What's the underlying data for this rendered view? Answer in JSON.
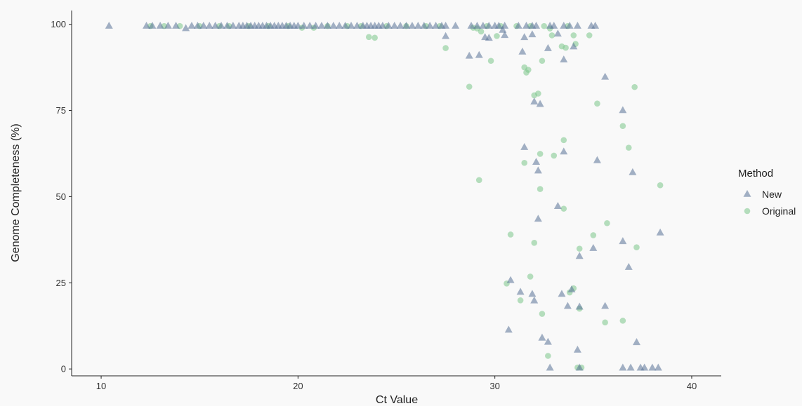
{
  "chart_data": {
    "type": "scatter",
    "xlabel": "Ct Value",
    "ylabel": "Genome Completeness (%)",
    "xlim": [
      8.5,
      41.5
    ],
    "ylim": [
      -2,
      104
    ],
    "xticks": [
      10,
      20,
      30,
      40
    ],
    "yticks": [
      0,
      25,
      50,
      75,
      100
    ],
    "grid": false,
    "legend": {
      "title": "Method",
      "placement": "right",
      "entries": [
        {
          "label": "New",
          "marker": "triangle",
          "color": "#5a7398"
        },
        {
          "label": "Original",
          "marker": "circle",
          "color": "#7cc68a"
        }
      ]
    },
    "series": [
      {
        "name": "New",
        "marker": "triangle",
        "color": "#5a7398",
        "opacity": 0.55,
        "points": [
          [
            10.4,
            99.5
          ],
          [
            12.3,
            99.5
          ],
          [
            12.6,
            99.5
          ],
          [
            13.0,
            99.5
          ],
          [
            13.4,
            99.5
          ],
          [
            13.8,
            99.5
          ],
          [
            14.3,
            98.8
          ],
          [
            14.6,
            99.5
          ],
          [
            14.9,
            99.5
          ],
          [
            15.2,
            99.5
          ],
          [
            15.5,
            99.5
          ],
          [
            15.8,
            99.5
          ],
          [
            16.1,
            99.5
          ],
          [
            16.4,
            99.5
          ],
          [
            16.7,
            99.5
          ],
          [
            17.0,
            99.5
          ],
          [
            17.2,
            99.5
          ],
          [
            17.4,
            99.5
          ],
          [
            17.6,
            99.5
          ],
          [
            17.8,
            99.5
          ],
          [
            18.0,
            99.5
          ],
          [
            18.2,
            99.5
          ],
          [
            18.4,
            99.5
          ],
          [
            18.6,
            99.5
          ],
          [
            18.8,
            99.5
          ],
          [
            19.0,
            99.5
          ],
          [
            19.2,
            99.5
          ],
          [
            19.4,
            99.5
          ],
          [
            19.6,
            99.5
          ],
          [
            19.8,
            99.5
          ],
          [
            20.0,
            99.5
          ],
          [
            20.3,
            99.5
          ],
          [
            20.6,
            99.5
          ],
          [
            20.9,
            99.5
          ],
          [
            21.2,
            99.5
          ],
          [
            21.5,
            99.5
          ],
          [
            21.8,
            99.5
          ],
          [
            22.1,
            99.5
          ],
          [
            22.4,
            99.5
          ],
          [
            22.7,
            99.5
          ],
          [
            23.0,
            99.5
          ],
          [
            23.3,
            99.5
          ],
          [
            23.5,
            99.5
          ],
          [
            23.7,
            99.5
          ],
          [
            23.9,
            99.5
          ],
          [
            24.1,
            99.5
          ],
          [
            24.3,
            99.5
          ],
          [
            24.6,
            99.5
          ],
          [
            24.9,
            99.5
          ],
          [
            25.2,
            99.5
          ],
          [
            25.5,
            99.5
          ],
          [
            25.8,
            99.5
          ],
          [
            26.1,
            99.5
          ],
          [
            26.4,
            99.5
          ],
          [
            26.7,
            99.5
          ],
          [
            27.0,
            99.5
          ],
          [
            27.3,
            99.5
          ],
          [
            27.5,
            99.5
          ],
          [
            28.0,
            99.5
          ],
          [
            28.8,
            99.5
          ],
          [
            29.1,
            99.5
          ],
          [
            29.4,
            99.5
          ],
          [
            29.7,
            99.5
          ],
          [
            30.0,
            99.5
          ],
          [
            30.2,
            99.5
          ],
          [
            30.5,
            99.5
          ],
          [
            31.2,
            99.5
          ],
          [
            31.6,
            99.5
          ],
          [
            31.9,
            99.5
          ],
          [
            32.1,
            99.5
          ],
          [
            32.8,
            99.5
          ],
          [
            33.0,
            99.5
          ],
          [
            33.5,
            99.5
          ],
          [
            33.8,
            99.5
          ],
          [
            34.2,
            99.5
          ],
          [
            34.9,
            99.5
          ],
          [
            35.1,
            99.5
          ],
          [
            27.5,
            96.5
          ],
          [
            29.5,
            96.2
          ],
          [
            29.7,
            96.0
          ],
          [
            30.4,
            98.3
          ],
          [
            30.5,
            96.8
          ],
          [
            31.5,
            96.2
          ],
          [
            31.9,
            97.0
          ],
          [
            33.2,
            97.2
          ],
          [
            34.0,
            93.5
          ],
          [
            28.7,
            90.8
          ],
          [
            29.2,
            91.0
          ],
          [
            31.4,
            92.0
          ],
          [
            32.7,
            93.0
          ],
          [
            33.5,
            89.7
          ],
          [
            35.6,
            84.7
          ],
          [
            32.0,
            77.5
          ],
          [
            32.3,
            76.8
          ],
          [
            36.5,
            75.0
          ],
          [
            31.5,
            64.3
          ],
          [
            33.5,
            63.0
          ],
          [
            32.1,
            60.0
          ],
          [
            35.2,
            60.5
          ],
          [
            32.2,
            57.5
          ],
          [
            37.0,
            57.0
          ],
          [
            33.2,
            47.2
          ],
          [
            32.2,
            43.5
          ],
          [
            38.4,
            39.5
          ],
          [
            36.5,
            37.0
          ],
          [
            35.0,
            35.0
          ],
          [
            34.3,
            32.7
          ],
          [
            36.8,
            29.5
          ],
          [
            30.8,
            25.7
          ],
          [
            33.9,
            23.0
          ],
          [
            31.3,
            22.3
          ],
          [
            31.9,
            21.7
          ],
          [
            33.4,
            21.7
          ],
          [
            32.0,
            19.8
          ],
          [
            33.7,
            18.2
          ],
          [
            34.3,
            18.0
          ],
          [
            35.6,
            18.2
          ],
          [
            30.7,
            11.3
          ],
          [
            32.4,
            9.0
          ],
          [
            32.7,
            7.8
          ],
          [
            37.2,
            7.7
          ],
          [
            34.2,
            5.5
          ],
          [
            32.8,
            0.3
          ],
          [
            34.3,
            0.3
          ],
          [
            36.5,
            0.3
          ],
          [
            36.9,
            0.3
          ],
          [
            37.4,
            0.3
          ],
          [
            37.6,
            0.3
          ],
          [
            38.0,
            0.3
          ],
          [
            38.3,
            0.3
          ]
        ]
      },
      {
        "name": "Original",
        "marker": "circle",
        "color": "#7cc68a",
        "opacity": 0.55,
        "points": [
          [
            12.5,
            99.5
          ],
          [
            13.2,
            99.5
          ],
          [
            14.0,
            99.5
          ],
          [
            15.0,
            99.5
          ],
          [
            16.0,
            99.5
          ],
          [
            16.5,
            99.5
          ],
          [
            17.5,
            99.5
          ],
          [
            18.5,
            99.5
          ],
          [
            19.5,
            99.5
          ],
          [
            20.2,
            99.0
          ],
          [
            20.8,
            99.0
          ],
          [
            21.5,
            99.5
          ],
          [
            22.5,
            99.5
          ],
          [
            23.2,
            99.5
          ],
          [
            24.5,
            99.5
          ],
          [
            25.5,
            99.5
          ],
          [
            26.5,
            99.5
          ],
          [
            27.2,
            99.5
          ],
          [
            28.9,
            99.0
          ],
          [
            29.1,
            98.8
          ],
          [
            29.6,
            99.5
          ],
          [
            30.3,
            99.5
          ],
          [
            31.1,
            99.5
          ],
          [
            31.8,
            99.5
          ],
          [
            32.5,
            99.5
          ],
          [
            32.8,
            98.8
          ],
          [
            33.7,
            99.5
          ],
          [
            23.6,
            96.3
          ],
          [
            23.9,
            96.1
          ],
          [
            29.3,
            97.9
          ],
          [
            30.1,
            96.6
          ],
          [
            32.9,
            96.8
          ],
          [
            34.0,
            96.8
          ],
          [
            34.8,
            96.8
          ],
          [
            27.5,
            93.1
          ],
          [
            33.4,
            93.6
          ],
          [
            33.6,
            93.2
          ],
          [
            34.1,
            94.3
          ],
          [
            29.8,
            89.4
          ],
          [
            32.4,
            89.4
          ],
          [
            31.5,
            87.5
          ],
          [
            31.6,
            86.0
          ],
          [
            31.7,
            86.8
          ],
          [
            28.7,
            81.9
          ],
          [
            37.1,
            81.8
          ],
          [
            32.0,
            79.4
          ],
          [
            32.2,
            79.9
          ],
          [
            35.2,
            77.0
          ],
          [
            36.5,
            70.5
          ],
          [
            33.5,
            66.4
          ],
          [
            36.8,
            64.2
          ],
          [
            32.3,
            62.4
          ],
          [
            33.0,
            61.9
          ],
          [
            31.5,
            59.8
          ],
          [
            29.2,
            54.8
          ],
          [
            32.3,
            52.2
          ],
          [
            38.4,
            53.3
          ],
          [
            33.5,
            46.5
          ],
          [
            35.7,
            42.3
          ],
          [
            30.8,
            39.0
          ],
          [
            35.0,
            38.8
          ],
          [
            32.0,
            36.6
          ],
          [
            37.2,
            35.3
          ],
          [
            34.3,
            34.9
          ],
          [
            31.8,
            26.8
          ],
          [
            30.6,
            24.8
          ],
          [
            34.0,
            23.4
          ],
          [
            33.8,
            22.2
          ],
          [
            31.3,
            19.9
          ],
          [
            34.3,
            17.5
          ],
          [
            32.4,
            16.0
          ],
          [
            36.5,
            14.0
          ],
          [
            35.6,
            13.5
          ],
          [
            32.7,
            3.8
          ],
          [
            34.2,
            0.4
          ],
          [
            34.4,
            0.4
          ]
        ]
      }
    ]
  }
}
